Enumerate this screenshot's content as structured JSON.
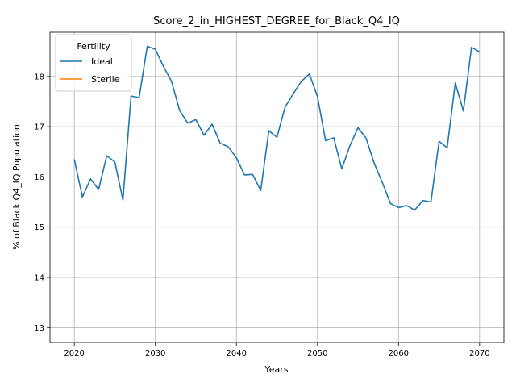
{
  "chart_data": {
    "type": "line",
    "title": "Score_2_in_HIGHEST_DEGREE_for_Black_Q4_IQ",
    "xlabel": "Years",
    "ylabel": "% of Black Q4_IQ Population",
    "xlim": [
      2017,
      2073
    ],
    "ylim": [
      12.7,
      18.88
    ],
    "xticks": [
      2020,
      2030,
      2040,
      2050,
      2060,
      2070
    ],
    "yticks": [
      13,
      14,
      15,
      16,
      17,
      18
    ],
    "grid": true,
    "legend": {
      "title": "Fertility",
      "placement": "top-left",
      "entries": [
        "Ideal",
        "Sterile"
      ]
    },
    "series": [
      {
        "name": "Ideal",
        "color": "#1f77b4",
        "x": [
          2020,
          2021,
          2022,
          2023,
          2024,
          2025,
          2026,
          2027,
          2028,
          2029,
          2030,
          2031,
          2032,
          2033,
          2034,
          2035,
          2036,
          2037,
          2038,
          2039,
          2040,
          2041,
          2042,
          2043,
          2044,
          2045,
          2046,
          2047,
          2048,
          2049,
          2050,
          2051,
          2052,
          2053,
          2054,
          2055,
          2056,
          2057,
          2058,
          2059,
          2060,
          2061,
          2062,
          2063,
          2064,
          2065,
          2066,
          2067,
          2068,
          2069,
          2070
        ],
        "y": [
          16.35,
          15.6,
          15.96,
          15.75,
          16.42,
          16.3,
          15.54,
          17.61,
          17.58,
          18.6,
          18.54,
          18.2,
          17.9,
          17.32,
          17.07,
          17.14,
          16.83,
          17.05,
          16.67,
          16.6,
          16.38,
          16.04,
          16.05,
          15.73,
          16.92,
          16.79,
          17.39,
          17.65,
          17.9,
          18.05,
          17.6,
          16.72,
          16.78,
          16.16,
          16.62,
          16.98,
          16.77,
          16.27,
          15.89,
          15.47,
          15.39,
          15.43,
          15.34,
          15.53,
          15.5,
          16.71,
          16.58,
          17.87,
          17.31,
          18.58,
          18.49
        ]
      },
      {
        "name": "Sterile",
        "color": "#ff7f0e",
        "x": [],
        "y": []
      }
    ]
  }
}
